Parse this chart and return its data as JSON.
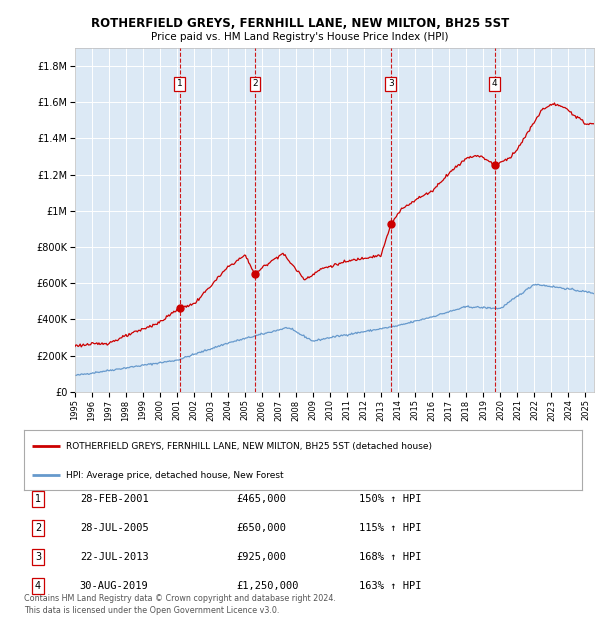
{
  "title": "ROTHERFIELD GREYS, FERNHILL LANE, NEW MILTON, BH25 5ST",
  "subtitle": "Price paid vs. HM Land Registry's House Price Index (HPI)",
  "red_label": "ROTHERFIELD GREYS, FERNHILL LANE, NEW MILTON, BH25 5ST (detached house)",
  "blue_label": "HPI: Average price, detached house, New Forest",
  "transactions": [
    {
      "num": 1,
      "date": "28-FEB-2001",
      "price": 465000,
      "pct": "150%",
      "dir": "↑",
      "year": 2001.15
    },
    {
      "num": 2,
      "date": "28-JUL-2005",
      "price": 650000,
      "pct": "115%",
      "dir": "↑",
      "year": 2005.57
    },
    {
      "num": 3,
      "date": "22-JUL-2013",
      "price": 925000,
      "pct": "168%",
      "dir": "↑",
      "year": 2013.56
    },
    {
      "num": 4,
      "date": "30-AUG-2019",
      "price": 1250000,
      "pct": "163%",
      "dir": "↑",
      "year": 2019.67
    }
  ],
  "ylim": [
    0,
    1900000
  ],
  "xlim_start": 1995.0,
  "xlim_end": 2025.5,
  "background_color": "#ffffff",
  "plot_bg_color": "#dce9f5",
  "grid_color": "#ffffff",
  "red_color": "#cc0000",
  "blue_color": "#6699cc",
  "footer": "Contains HM Land Registry data © Crown copyright and database right 2024.\nThis data is licensed under the Open Government Licence v3.0."
}
